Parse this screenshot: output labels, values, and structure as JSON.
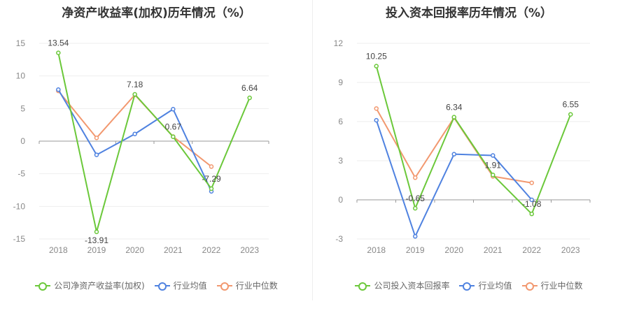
{
  "chart_data": [
    {
      "type": "line",
      "title": "净资产收益率(加权)历年情况（%）",
      "categories": [
        "2018",
        "2019",
        "2020",
        "2021",
        "2022",
        "2023"
      ],
      "ylim": [
        -15,
        15
      ],
      "yticks": [
        15,
        10,
        5,
        0,
        -5,
        -10,
        -15
      ],
      "grid": true,
      "legend_position": "bottom",
      "series": [
        {
          "name": "公司净资产收益率(加权)",
          "color": "#6bc83a",
          "values": [
            13.54,
            -13.91,
            7.18,
            0.67,
            -7.29,
            6.64
          ],
          "labels": [
            "13.54",
            "-13.91",
            "7.18",
            "0.67",
            "-7.29",
            "6.64"
          ]
        },
        {
          "name": "行业均值",
          "color": "#4f82e0",
          "values": [
            7.9,
            -2.1,
            1.1,
            4.9,
            -7.7,
            null
          ]
        },
        {
          "name": "行业中位数",
          "color": "#f2986f",
          "values": [
            7.7,
            0.5,
            7.1,
            0.7,
            -3.9,
            null
          ]
        }
      ]
    },
    {
      "type": "line",
      "title": "投入资本回报率历年情况（%）",
      "categories": [
        "2018",
        "2019",
        "2020",
        "2021",
        "2022",
        "2023"
      ],
      "ylim": [
        -3,
        12
      ],
      "yticks": [
        12,
        9,
        6,
        3,
        0,
        -3
      ],
      "grid": true,
      "legend_position": "bottom",
      "series": [
        {
          "name": "公司投入资本回报率",
          "color": "#6bc83a",
          "values": [
            10.25,
            -0.65,
            6.34,
            1.91,
            -1.08,
            6.55
          ],
          "labels": [
            "10.25",
            "-0.65",
            "6.34",
            "1.91",
            "-1.08",
            "6.55"
          ]
        },
        {
          "name": "行业均值",
          "color": "#4f82e0",
          "values": [
            6.1,
            -2.8,
            3.5,
            3.4,
            0.0,
            null
          ]
        },
        {
          "name": "行业中位数",
          "color": "#f2986f",
          "values": [
            7.0,
            1.7,
            6.3,
            1.8,
            1.3,
            null
          ]
        }
      ]
    }
  ]
}
